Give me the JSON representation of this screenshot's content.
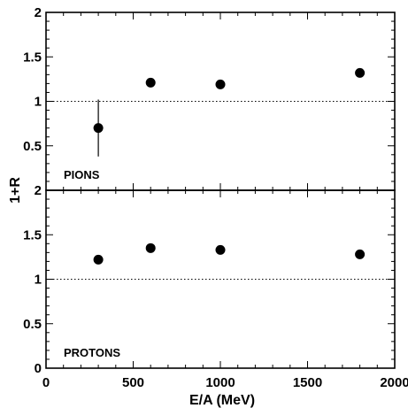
{
  "chart_data": {
    "type": "scatter",
    "xlabel": "E/A (MeV)",
    "ylabel": "1+R",
    "xlim": [
      0,
      2000
    ],
    "x_ticks": [
      "0",
      "500",
      "1000",
      "1500",
      "2000"
    ],
    "reference_line": 1,
    "panels": [
      {
        "label": "PIONS",
        "ylim": [
          0,
          2
        ],
        "y_ticks": [
          "0.5",
          "1",
          "1.5",
          "2"
        ],
        "points": [
          {
            "x": 300,
            "y": 0.7,
            "err_low": 0.38,
            "err_high": 1.02
          },
          {
            "x": 600,
            "y": 1.21
          },
          {
            "x": 1000,
            "y": 1.19
          },
          {
            "x": 1800,
            "y": 1.32
          }
        ]
      },
      {
        "label": "PROTONS",
        "ylim": [
          0,
          2
        ],
        "y_ticks": [
          "0",
          "0.5",
          "1",
          "1.5",
          "2"
        ],
        "points": [
          {
            "x": 300,
            "y": 1.22
          },
          {
            "x": 600,
            "y": 1.35
          },
          {
            "x": 1000,
            "y": 1.33
          },
          {
            "x": 1800,
            "y": 1.28
          }
        ]
      }
    ]
  }
}
